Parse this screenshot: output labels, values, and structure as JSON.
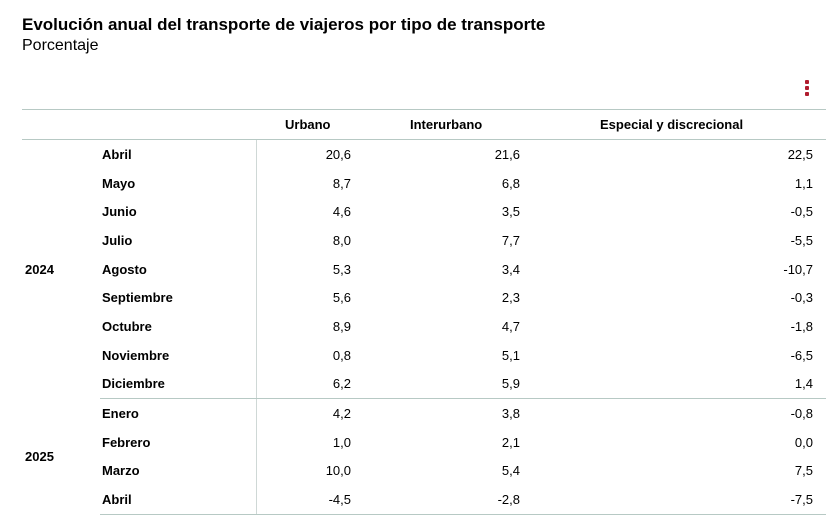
{
  "title": "Evolución anual del transporte de viajeros por tipo de transporte",
  "subtitle": "Porcentaje",
  "icons": {
    "menu": "more-vertical-icon",
    "accent_color": "#b01c2e"
  },
  "table": {
    "headers": [
      "Urbano",
      "Interurbano",
      "Especial y discrecional"
    ],
    "groups": [
      {
        "year": "2024",
        "rows": [
          {
            "month": "Abril",
            "urbano": "20,6",
            "interurbano": "21,6",
            "especial": "22,5"
          },
          {
            "month": "Mayo",
            "urbano": "8,7",
            "interurbano": "6,8",
            "especial": "1,1"
          },
          {
            "month": "Junio",
            "urbano": "4,6",
            "interurbano": "3,5",
            "especial": "-0,5"
          },
          {
            "month": "Julio",
            "urbano": "8,0",
            "interurbano": "7,7",
            "especial": "-5,5"
          },
          {
            "month": "Agosto",
            "urbano": "5,3",
            "interurbano": "3,4",
            "especial": "-10,7"
          },
          {
            "month": "Septiembre",
            "urbano": "5,6",
            "interurbano": "2,3",
            "especial": "-0,3"
          },
          {
            "month": "Octubre",
            "urbano": "8,9",
            "interurbano": "4,7",
            "especial": "-1,8"
          },
          {
            "month": "Noviembre",
            "urbano": "0,8",
            "interurbano": "5,1",
            "especial": "-6,5"
          },
          {
            "month": "Diciembre",
            "urbano": "6,2",
            "interurbano": "5,9",
            "especial": "1,4"
          }
        ]
      },
      {
        "year": "2025",
        "rows": [
          {
            "month": "Enero",
            "urbano": "4,2",
            "interurbano": "3,8",
            "especial": "-0,8"
          },
          {
            "month": "Febrero",
            "urbano": "1,0",
            "interurbano": "2,1",
            "especial": "0,0"
          },
          {
            "month": "Marzo",
            "urbano": "10,0",
            "interurbano": "5,4",
            "especial": "7,5"
          },
          {
            "month": "Abril",
            "urbano": "-4,5",
            "interurbano": "-2,8",
            "especial": "-7,5"
          }
        ]
      }
    ]
  }
}
